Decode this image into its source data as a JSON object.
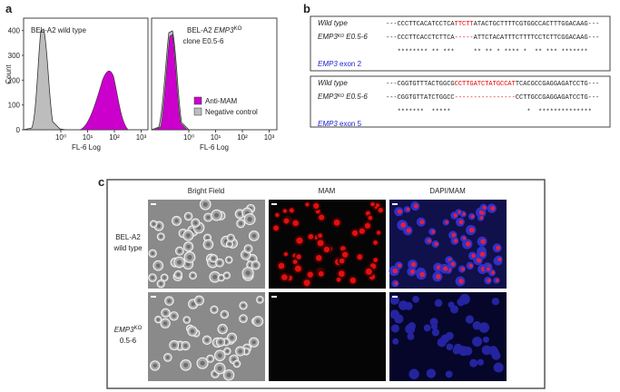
{
  "panel_a": {
    "label": "a",
    "y_axis_label": "Count",
    "y_ticks": [
      "0",
      "100",
      "200",
      "300",
      "400"
    ],
    "plot_1": {
      "title": "BEL-A2 wild type",
      "x_ticks": [
        "10⁰",
        "10¹",
        "10²",
        "10³"
      ],
      "x_axis_label": "FL-6 Log"
    },
    "plot_2": {
      "title_prefix": "BEL-A2 ",
      "title_gene": "EMP3",
      "title_sup": "KO",
      "title_line_2": "clone E0.5-6",
      "x_ticks": [
        "10⁰",
        "10¹",
        "10²",
        "10³"
      ],
      "x_axis_label": "FL-6 Log",
      "legend": [
        "Anti-MAM",
        "Negative control"
      ]
    }
  },
  "panel_b": {
    "label": "b",
    "box_1": {
      "row_1_label": "Wild type",
      "row_1": [
        "---CCCTTCACATCCTCA",
        "TTCTT",
        "ATACTGCTTTTCGTGGCCACTTTGGACAAG---"
      ],
      "row_2_label_gene": "EMP3",
      "row_2_label_sup": "KO",
      "row_2_label_rest": " E0.5-6",
      "row_2": [
        "---CCCTTCACCTCTTCA",
        "-----",
        "ATTCTACATTTCTTTTCCTCTTCGGACAAG---"
      ],
      "stars": "   ******** ** ***     ** ** * **** *  ** *** *******",
      "exon_gene": "EMP3",
      "exon_rest": " exon 2"
    },
    "box_2": {
      "row_1_label": "Wild type",
      "row_1": [
        "---CGGTGTTTACTGGCG",
        "CCTTGATCTATGCCAT",
        "TCACGCCGAGGAGATCCTG---"
      ],
      "row_2_label_gene": "EMP3",
      "row_2_label_sup": "KO",
      "row_2_label_rest": " E0.5-6",
      "row_2": [
        "---CGGTGTTATCTGGCC",
        "----------------",
        "CCTTGCCGAGGAGATCCTG---"
      ],
      "stars": "   *******  *****                    *  **************",
      "exon_gene": "EMP3",
      "exon_rest": " exon 5"
    }
  },
  "panel_c": {
    "label": "c",
    "columns": [
      "Bright Field",
      "MAM",
      "DAPI/MAM"
    ],
    "row_1_label": [
      "BEL-A2",
      "wild type"
    ],
    "row_2_label_gene": "EMP3",
    "row_2_label_sup": "KO",
    "row_2_label_line_2": "0.5-6"
  }
}
